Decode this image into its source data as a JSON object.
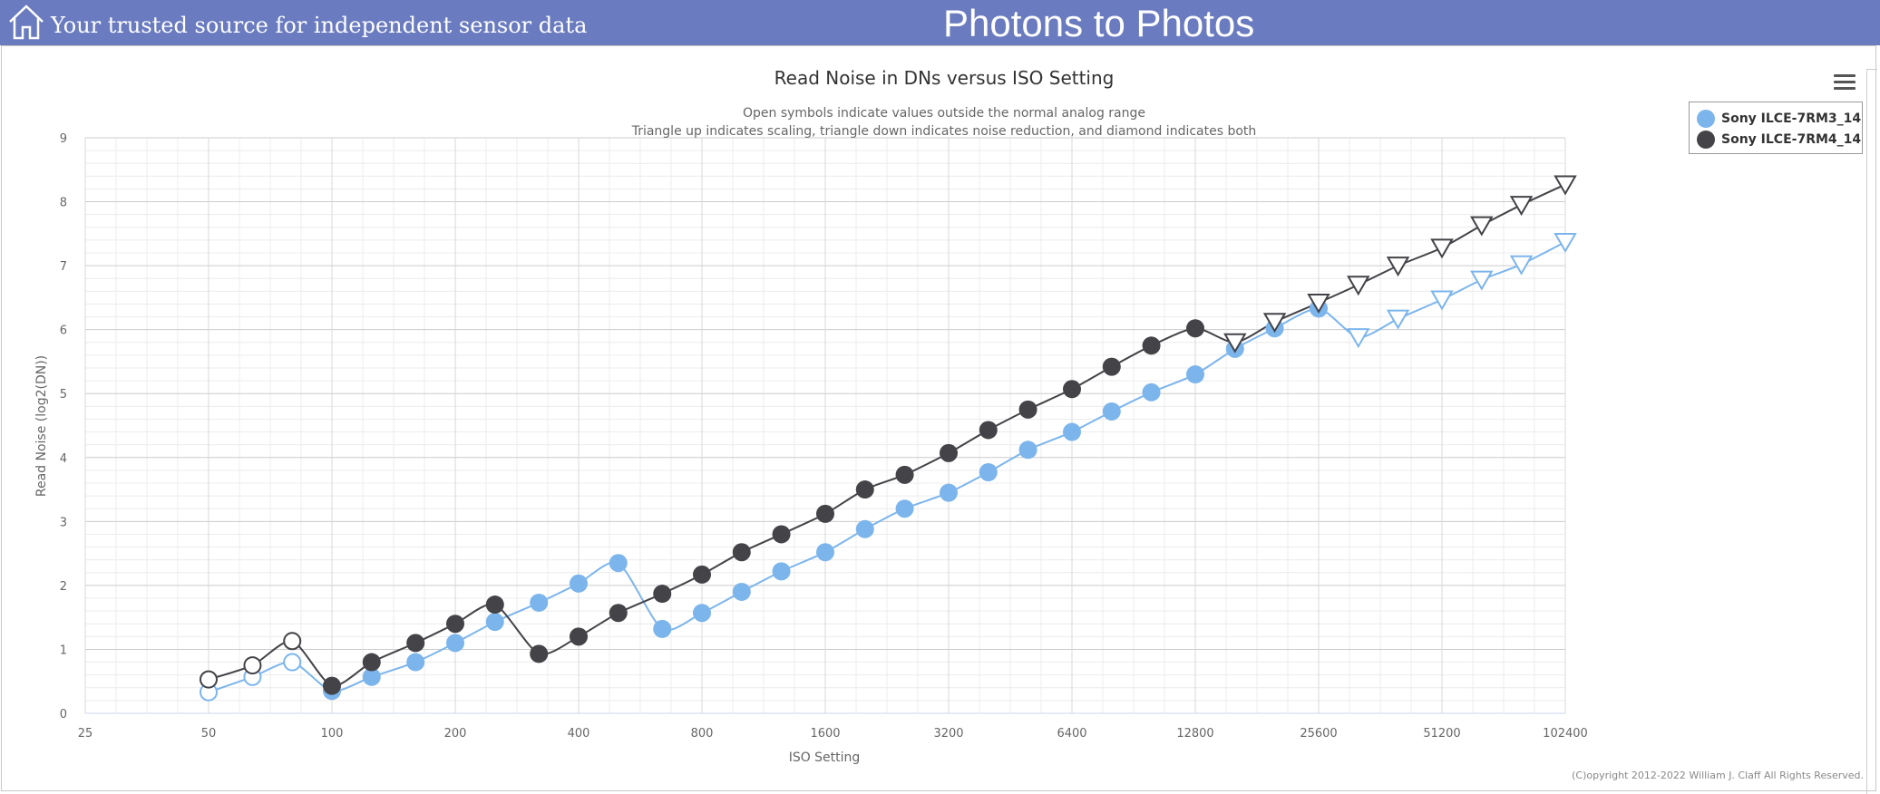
{
  "header": {
    "tagline": "Your trusted source for independent sensor data",
    "site_title": "Photons to Photos",
    "bg_color": "#6a7bc0"
  },
  "menu_icon": "hamburger-menu-icon",
  "home_icon": "home-icon",
  "copyright": "(C)opyright 2012-2022 William J. Claff All Rights Reserved.",
  "chart_data": {
    "type": "line",
    "title": "Read Noise in DNs versus ISO Setting",
    "subtitle": [
      "Open symbols indicate values outside the normal analog range",
      "Triangle up indicates scaling, triangle down indicates noise reduction, and diamond indicates both"
    ],
    "xlabel": "ISO Setting",
    "ylabel": "Read Noise (log2(DN))",
    "x_scale": "log2",
    "xlim": [
      25,
      102400
    ],
    "ylim": [
      0,
      9
    ],
    "x_ticks": [
      25,
      50,
      100,
      200,
      400,
      800,
      1600,
      3200,
      6400,
      12800,
      25600,
      51200,
      102400
    ],
    "y_ticks": [
      0,
      1,
      2,
      3,
      4,
      5,
      6,
      7,
      8,
      9
    ],
    "grid": true,
    "legend_position": "top-right",
    "series": [
      {
        "name": "Sony ILCE-7RM3_14",
        "color": "#7cb5ec",
        "points": [
          {
            "x": 50,
            "y": 0.33,
            "marker": "open-circle"
          },
          {
            "x": 64,
            "y": 0.57,
            "marker": "open-circle"
          },
          {
            "x": 80,
            "y": 0.8,
            "marker": "open-circle"
          },
          {
            "x": 100,
            "y": 0.35,
            "marker": "circle"
          },
          {
            "x": 125,
            "y": 0.57,
            "marker": "circle"
          },
          {
            "x": 160,
            "y": 0.8,
            "marker": "circle"
          },
          {
            "x": 200,
            "y": 1.1,
            "marker": "circle"
          },
          {
            "x": 250,
            "y": 1.43,
            "marker": "circle"
          },
          {
            "x": 320,
            "y": 1.73,
            "marker": "circle"
          },
          {
            "x": 400,
            "y": 2.03,
            "marker": "circle"
          },
          {
            "x": 500,
            "y": 2.35,
            "marker": "circle"
          },
          {
            "x": 640,
            "y": 1.32,
            "marker": "circle"
          },
          {
            "x": 800,
            "y": 1.57,
            "marker": "circle"
          },
          {
            "x": 1000,
            "y": 1.9,
            "marker": "circle"
          },
          {
            "x": 1250,
            "y": 2.22,
            "marker": "circle"
          },
          {
            "x": 1600,
            "y": 2.52,
            "marker": "circle"
          },
          {
            "x": 2000,
            "y": 2.88,
            "marker": "circle"
          },
          {
            "x": 2500,
            "y": 3.2,
            "marker": "circle"
          },
          {
            "x": 3200,
            "y": 3.45,
            "marker": "circle"
          },
          {
            "x": 4000,
            "y": 3.77,
            "marker": "circle"
          },
          {
            "x": 5000,
            "y": 4.12,
            "marker": "circle"
          },
          {
            "x": 6400,
            "y": 4.4,
            "marker": "circle"
          },
          {
            "x": 8000,
            "y": 4.72,
            "marker": "circle"
          },
          {
            "x": 10000,
            "y": 5.02,
            "marker": "circle"
          },
          {
            "x": 12800,
            "y": 5.3,
            "marker": "circle"
          },
          {
            "x": 16000,
            "y": 5.7,
            "marker": "circle"
          },
          {
            "x": 20000,
            "y": 6.02,
            "marker": "circle"
          },
          {
            "x": 25600,
            "y": 6.33,
            "marker": "circle"
          },
          {
            "x": 32000,
            "y": 5.88,
            "marker": "open-triangle-down"
          },
          {
            "x": 40000,
            "y": 6.17,
            "marker": "open-triangle-down"
          },
          {
            "x": 51200,
            "y": 6.47,
            "marker": "open-triangle-down"
          },
          {
            "x": 64000,
            "y": 6.78,
            "marker": "open-triangle-down"
          },
          {
            "x": 80000,
            "y": 7.02,
            "marker": "open-triangle-down"
          },
          {
            "x": 102400,
            "y": 7.37,
            "marker": "open-triangle-down"
          }
        ]
      },
      {
        "name": "Sony ILCE-7RM4_14",
        "color": "#434348",
        "points": [
          {
            "x": 50,
            "y": 0.53,
            "marker": "open-circle"
          },
          {
            "x": 64,
            "y": 0.75,
            "marker": "open-circle"
          },
          {
            "x": 80,
            "y": 1.13,
            "marker": "open-circle"
          },
          {
            "x": 100,
            "y": 0.43,
            "marker": "circle"
          },
          {
            "x": 125,
            "y": 0.8,
            "marker": "circle"
          },
          {
            "x": 160,
            "y": 1.1,
            "marker": "circle"
          },
          {
            "x": 200,
            "y": 1.4,
            "marker": "circle"
          },
          {
            "x": 250,
            "y": 1.7,
            "marker": "circle"
          },
          {
            "x": 320,
            "y": 0.93,
            "marker": "circle"
          },
          {
            "x": 400,
            "y": 1.2,
            "marker": "circle"
          },
          {
            "x": 500,
            "y": 1.57,
            "marker": "circle"
          },
          {
            "x": 640,
            "y": 1.87,
            "marker": "circle"
          },
          {
            "x": 800,
            "y": 2.17,
            "marker": "circle"
          },
          {
            "x": 1000,
            "y": 2.52,
            "marker": "circle"
          },
          {
            "x": 1250,
            "y": 2.8,
            "marker": "circle"
          },
          {
            "x": 1600,
            "y": 3.12,
            "marker": "circle"
          },
          {
            "x": 2000,
            "y": 3.5,
            "marker": "circle"
          },
          {
            "x": 2500,
            "y": 3.73,
            "marker": "circle"
          },
          {
            "x": 3200,
            "y": 4.07,
            "marker": "circle"
          },
          {
            "x": 4000,
            "y": 4.43,
            "marker": "circle"
          },
          {
            "x": 5000,
            "y": 4.75,
            "marker": "circle"
          },
          {
            "x": 6400,
            "y": 5.07,
            "marker": "circle"
          },
          {
            "x": 8000,
            "y": 5.42,
            "marker": "circle"
          },
          {
            "x": 10000,
            "y": 5.75,
            "marker": "circle"
          },
          {
            "x": 12800,
            "y": 6.02,
            "marker": "circle"
          },
          {
            "x": 16000,
            "y": 5.8,
            "marker": "open-triangle-down"
          },
          {
            "x": 20000,
            "y": 6.12,
            "marker": "open-triangle-down"
          },
          {
            "x": 25600,
            "y": 6.42,
            "marker": "open-triangle-down"
          },
          {
            "x": 32000,
            "y": 6.7,
            "marker": "open-triangle-down"
          },
          {
            "x": 40000,
            "y": 7.0,
            "marker": "open-triangle-down"
          },
          {
            "x": 51200,
            "y": 7.28,
            "marker": "open-triangle-down"
          },
          {
            "x": 64000,
            "y": 7.63,
            "marker": "open-triangle-down"
          },
          {
            "x": 80000,
            "y": 7.95,
            "marker": "open-triangle-down"
          },
          {
            "x": 102400,
            "y": 8.27,
            "marker": "open-triangle-down"
          }
        ]
      }
    ]
  }
}
